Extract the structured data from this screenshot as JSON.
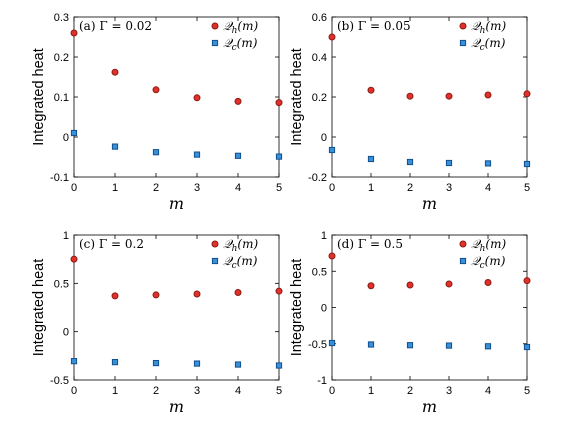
{
  "colors": {
    "hot_fill": "#e0312b",
    "hot_edge": "#8b1a12",
    "cold_fill": "#3b8fd6",
    "cold_edge": "#0f4f8f"
  },
  "chart_data": [
    {
      "type": "scatter",
      "panel_label": "(a) Γ = 0.02",
      "xlabel": "m",
      "ylabel": "Integrated heat",
      "x": [
        0,
        1,
        2,
        3,
        4,
        5
      ],
      "xlim": [
        0,
        5
      ],
      "xticks": [
        "0",
        "1",
        "2",
        "3",
        "4",
        "5"
      ],
      "ylim": [
        -0.1,
        0.3
      ],
      "yticks": [
        "-0.1",
        "0",
        "0.1",
        "0.2",
        "0.3"
      ],
      "legend_position": "top-right",
      "grid": false,
      "series": [
        {
          "name": "Q_h(m)",
          "name_main": "𝒬",
          "name_sub": "h",
          "name_tail": "(m)",
          "marker": "circle",
          "values": [
            0.26,
            0.162,
            0.118,
            0.098,
            0.089,
            0.086
          ]
        },
        {
          "name": "Q_c(m)",
          "name_main": "𝒬",
          "name_sub": "c",
          "name_tail": "(m)",
          "marker": "square",
          "values": [
            0.01,
            -0.024,
            -0.038,
            -0.044,
            -0.047,
            -0.049
          ]
        }
      ]
    },
    {
      "type": "scatter",
      "panel_label": "(b) Γ = 0.05",
      "xlabel": "m",
      "ylabel": "Integrated heat",
      "x": [
        0,
        1,
        2,
        3,
        4,
        5
      ],
      "xlim": [
        0,
        5
      ],
      "xticks": [
        "0",
        "1",
        "2",
        "3",
        "4",
        "5"
      ],
      "ylim": [
        -0.2,
        0.6
      ],
      "yticks": [
        "-0.2",
        "0",
        "0.2",
        "0.4",
        "0.6"
      ],
      "legend_position": "top-right",
      "grid": false,
      "series": [
        {
          "name": "Q_h(m)",
          "name_main": "𝒬",
          "name_sub": "h",
          "name_tail": "(m)",
          "marker": "circle",
          "values": [
            0.5,
            0.234,
            0.204,
            0.204,
            0.21,
            0.216
          ]
        },
        {
          "name": "Q_c(m)",
          "name_main": "𝒬",
          "name_sub": "c",
          "name_tail": "(m)",
          "marker": "square",
          "values": [
            -0.065,
            -0.11,
            -0.125,
            -0.13,
            -0.132,
            -0.135
          ]
        }
      ]
    },
    {
      "type": "scatter",
      "panel_label": "(c) Γ = 0.2",
      "xlabel": "m",
      "ylabel": "Integrated heat",
      "x": [
        0,
        1,
        2,
        3,
        4,
        5
      ],
      "xlim": [
        0,
        5
      ],
      "xticks": [
        "0",
        "1",
        "2",
        "3",
        "4",
        "5"
      ],
      "ylim": [
        -0.5,
        1
      ],
      "yticks": [
        "-0.5",
        "0",
        "0.5",
        "1"
      ],
      "legend_position": "top-right",
      "grid": false,
      "series": [
        {
          "name": "Q_h(m)",
          "name_main": "𝒬",
          "name_sub": "h",
          "name_tail": "(m)",
          "marker": "circle",
          "values": [
            0.75,
            0.37,
            0.38,
            0.39,
            0.405,
            0.42
          ]
        },
        {
          "name": "Q_c(m)",
          "name_main": "𝒬",
          "name_sub": "c",
          "name_tail": "(m)",
          "marker": "square",
          "values": [
            -0.305,
            -0.315,
            -0.325,
            -0.33,
            -0.34,
            -0.35
          ]
        }
      ]
    },
    {
      "type": "scatter",
      "panel_label": "(d) Γ = 0.5",
      "xlabel": "m",
      "ylabel": "Integrated heat",
      "x": [
        0,
        1,
        2,
        3,
        4,
        5
      ],
      "xlim": [
        0,
        5
      ],
      "xticks": [
        "0",
        "1",
        "2",
        "3",
        "4",
        "5"
      ],
      "ylim": [
        -1,
        1
      ],
      "yticks": [
        "-1",
        "-0.5",
        "0",
        "0.5",
        "1"
      ],
      "legend_position": "top-right",
      "grid": false,
      "series": [
        {
          "name": "Q_h(m)",
          "name_main": "𝒬",
          "name_sub": "h",
          "name_tail": "(m)",
          "marker": "circle",
          "values": [
            0.71,
            0.3,
            0.31,
            0.325,
            0.345,
            0.37
          ]
        },
        {
          "name": "Q_c(m)",
          "name_main": "𝒬",
          "name_sub": "c",
          "name_tail": "(m)",
          "marker": "square",
          "values": [
            -0.49,
            -0.51,
            -0.52,
            -0.525,
            -0.535,
            -0.545
          ]
        }
      ]
    }
  ]
}
